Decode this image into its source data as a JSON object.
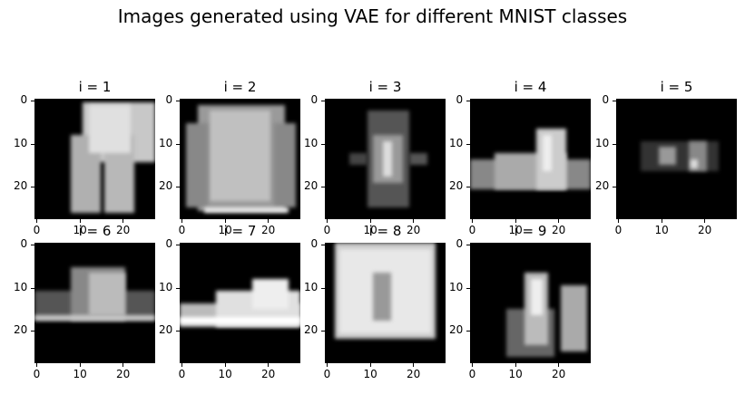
{
  "title": "Images generated using VAE for different MNIST classes",
  "panels": [
    {
      "label": "i = 1",
      "kind": "trousers"
    },
    {
      "label": "i = 2",
      "kind": "pullover"
    },
    {
      "label": "i = 3",
      "kind": "faint-dress"
    },
    {
      "label": "i = 4",
      "kind": "bag-low"
    },
    {
      "label": "i = 5",
      "kind": "sandal"
    },
    {
      "label": "i = 6",
      "kind": "shirt-low"
    },
    {
      "label": "i = 7",
      "kind": "sneaker"
    },
    {
      "label": "i = 8",
      "kind": "bag"
    },
    {
      "label": "i = 9",
      "kind": "boot"
    }
  ],
  "axis_ticks": {
    "x": [
      "0",
      "10",
      "20"
    ],
    "y": [
      "0",
      "10",
      "20"
    ],
    "range": [
      0,
      27
    ]
  },
  "colormap": [
    "#000000",
    "#ffffff"
  ]
}
